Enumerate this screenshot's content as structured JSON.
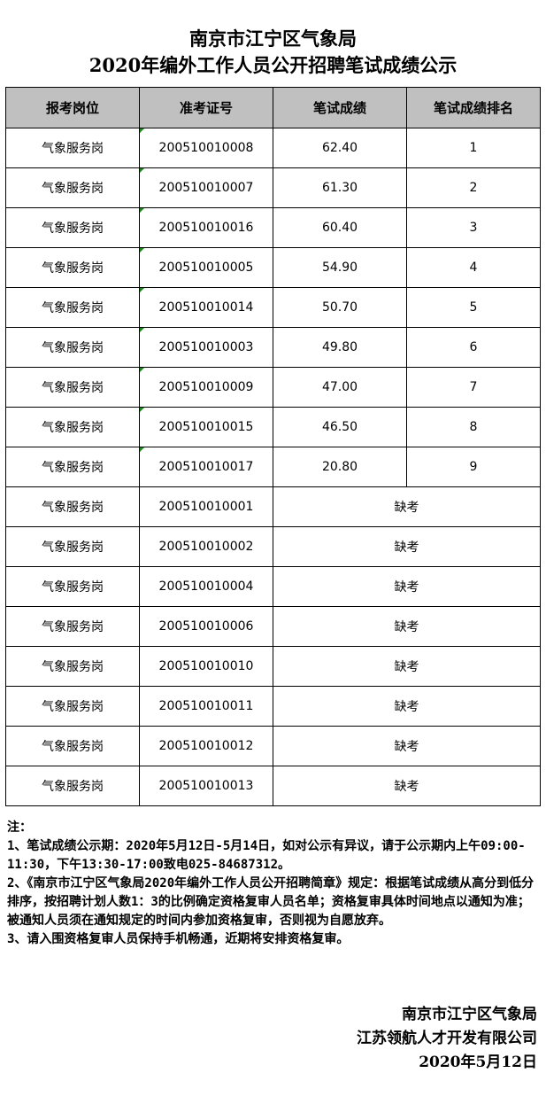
{
  "title_line1": "南京市江宁区气象局",
  "title_line2": "2020年编外工作人员公开招聘笔试成绩公示",
  "headers": [
    "报考岗位",
    "准考证号",
    "笔试成绩",
    "笔试成绩排名"
  ],
  "rows": [
    [
      "气象服务岗",
      "200510010008",
      "62.40",
      "1"
    ],
    [
      "气象服务岗",
      "200510010007",
      "61.30",
      "2"
    ],
    [
      "气象服务岗",
      "200510010016",
      "60.40",
      "3"
    ],
    [
      "气象服务岗",
      "200510010005",
      "54.90",
      "4"
    ],
    [
      "气象服务岗",
      "200510010014",
      "50.70",
      "5"
    ],
    [
      "气象服务岗",
      "200510010003",
      "49.80",
      "6"
    ],
    [
      "气象服务岗",
      "200510010009",
      "47.00",
      "7"
    ],
    [
      "气象服务岗",
      "200510010015",
      "46.50",
      "8"
    ],
    [
      "气象服务岗",
      "200510010017",
      "20.80",
      "9"
    ]
  ],
  "absent_rows": [
    [
      "气象服务岗",
      "200510010001",
      "缺考"
    ],
    [
      "气象服务岗",
      "200510010002",
      "缺考"
    ],
    [
      "气象服务岗",
      "200510010004",
      "缺考"
    ],
    [
      "气象服务岗",
      "200510010006",
      "缺考"
    ],
    [
      "气象服务岗",
      "200510010010",
      "缺考"
    ],
    [
      "气象服务岗",
      "200510010011",
      "缺考"
    ],
    [
      "气象服务岗",
      "200510010012",
      "缺考"
    ],
    [
      "气象服务岗",
      "200510010013",
      "缺考"
    ]
  ],
  "notes": [
    "注：",
    "1、笔试成绩公示期：2020年5月12日-5月14日，如对公示有异议，请于公示期内上午09:00-11:30，下午13:30-17:00致电025-84687312。",
    "2、《南京市江宁区气象局2020年编外工作人员公开招聘简章》规定：根据笔试成绩从高分到低分排序，按招聘计划人数1：3的比例确定资格复审人员名单；资格复审具体时间地点以通知为准；被通知人员须在通知规定的时间内参加资格复审，否则视为自愿放弃。",
    "3、请入围资格复审人员保持手机畅通，近期将安排资格复审。"
  ],
  "footer": [
    "南京市江宁区气象局",
    "江苏领航人才开发有限公司",
    "2020年5月12日"
  ],
  "colors": {
    "header_bg": "#c0c0c0",
    "cell_marker": "#1a8a1a"
  }
}
